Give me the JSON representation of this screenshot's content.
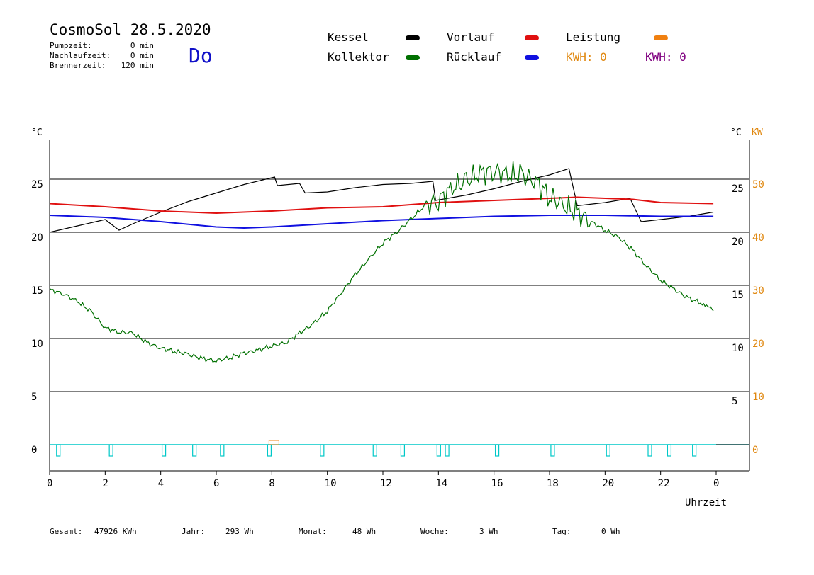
{
  "header": {
    "title": "CosmoSol 28.5.2020",
    "day": "Do",
    "info_rows": [
      {
        "label": "Pumpzeit:",
        "value": "0 min"
      },
      {
        "label": "Nachlaufzeit:",
        "value": "0 min"
      },
      {
        "label": "Brennerzeit:",
        "value": "120 min"
      }
    ]
  },
  "legend": {
    "kessel": {
      "label": "Kessel",
      "color": "#000000"
    },
    "kollektor": {
      "label": "Kollektor",
      "color": "#007000"
    },
    "vorlauf": {
      "label": "Vorlauf",
      "color": "#e01010"
    },
    "ruecklauf": {
      "label": "Rücklauf",
      "color": "#1010e0"
    },
    "leistung": {
      "label": "Leistung",
      "color": "#f08010"
    },
    "kwh_orange": "KWH: 0",
    "kwh_purple": "KWH: 0",
    "kwh_orange_color": "#e08810",
    "kwh_purple_color": "#800080"
  },
  "footer": {
    "gesamt_label": "Gesamt:",
    "gesamt_value": "47926 KWh",
    "jahr_label": "Jahr:",
    "jahr_value": "293 Wh",
    "monat_label": "Monat:",
    "monat_value": "48 Wh",
    "woche_label": "Woche:",
    "woche_value": "3 Wh",
    "tag_label": "Tag:",
    "tag_value": "0 Wh"
  },
  "chart_data": {
    "type": "line",
    "left_unit": "°C",
    "right_unit_temp": "°C",
    "right_unit_power": "KW",
    "xlabel": "Uhrzeit",
    "x_ticks": [
      "0",
      "2",
      "4",
      "6",
      "8",
      "10",
      "12",
      "14",
      "16",
      "18",
      "20",
      "22",
      "0"
    ],
    "xlim": [
      0,
      24
    ],
    "ylim": [
      -2,
      29
    ],
    "y_ticks_left": [
      "25",
      "20",
      "15",
      "10",
      "5",
      "0"
    ],
    "y_ticks_right_temp": [
      "25",
      "20",
      "15",
      "10",
      "5"
    ],
    "y_ticks_right_kw": [
      "50",
      "40",
      "30",
      "20",
      "10",
      "0"
    ],
    "grid": "horizontal",
    "series": [
      {
        "name": "Kessel",
        "color": "#000000",
        "points": [
          [
            0,
            20.0
          ],
          [
            0.5,
            20.3
          ],
          [
            1,
            20.6
          ],
          [
            1.5,
            20.9
          ],
          [
            2,
            21.2
          ],
          [
            2.5,
            20.2
          ],
          [
            3,
            20.8
          ],
          [
            4,
            21.9
          ],
          [
            5,
            22.9
          ],
          [
            6,
            23.7
          ],
          [
            7,
            24.5
          ],
          [
            8.1,
            25.2
          ],
          [
            8.2,
            24.4
          ],
          [
            9.0,
            24.6
          ],
          [
            9.2,
            23.7
          ],
          [
            10,
            23.8
          ],
          [
            11,
            24.2
          ],
          [
            12,
            24.5
          ],
          [
            13,
            24.6
          ],
          [
            13.8,
            24.8
          ],
          [
            13.9,
            23.0
          ],
          [
            15,
            23.5
          ],
          [
            16,
            24.1
          ],
          [
            17,
            24.8
          ],
          [
            18,
            25.4
          ],
          [
            18.7,
            26.0
          ],
          [
            19.0,
            22.5
          ],
          [
            20,
            22.8
          ],
          [
            20.9,
            23.2
          ],
          [
            21.3,
            21.0
          ],
          [
            22,
            21.2
          ],
          [
            23,
            21.5
          ],
          [
            23.9,
            21.9
          ]
        ]
      },
      {
        "name": "Vorlauf",
        "color": "#e01010",
        "points": [
          [
            0,
            22.7
          ],
          [
            2,
            22.4
          ],
          [
            4,
            22.0
          ],
          [
            6,
            21.8
          ],
          [
            8,
            22.0
          ],
          [
            10,
            22.3
          ],
          [
            12,
            22.4
          ],
          [
            14,
            22.8
          ],
          [
            16,
            23.0
          ],
          [
            18,
            23.2
          ],
          [
            19,
            23.3
          ],
          [
            21,
            23.1
          ],
          [
            22,
            22.8
          ],
          [
            23.9,
            22.7
          ]
        ]
      },
      {
        "name": "Rücklauf",
        "color": "#1010e0",
        "points": [
          [
            0,
            21.6
          ],
          [
            2,
            21.4
          ],
          [
            4,
            21.0
          ],
          [
            6,
            20.5
          ],
          [
            7,
            20.4
          ],
          [
            8,
            20.5
          ],
          [
            10,
            20.8
          ],
          [
            12,
            21.1
          ],
          [
            14,
            21.3
          ],
          [
            16,
            21.5
          ],
          [
            18,
            21.6
          ],
          [
            20,
            21.6
          ],
          [
            22,
            21.5
          ],
          [
            23.9,
            21.5
          ]
        ]
      },
      {
        "name": "Kollektor",
        "color": "#007000",
        "points": [
          [
            0,
            14.6
          ],
          [
            0.5,
            14.2
          ],
          [
            1,
            13.5
          ],
          [
            1.5,
            12.5
          ],
          [
            2,
            11.0
          ],
          [
            2.5,
            10.6
          ],
          [
            3,
            10.5
          ],
          [
            3.5,
            9.6
          ],
          [
            4,
            9.1
          ],
          [
            4.5,
            8.8
          ],
          [
            5,
            8.5
          ],
          [
            5.5,
            8.1
          ],
          [
            6,
            7.9
          ],
          [
            6.5,
            8.2
          ],
          [
            7,
            8.6
          ],
          [
            7.5,
            8.9
          ],
          [
            8,
            9.3
          ],
          [
            8.5,
            9.6
          ],
          [
            9,
            10.5
          ],
          [
            9.5,
            11.4
          ],
          [
            10,
            12.6
          ],
          [
            10.5,
            14.3
          ],
          [
            11,
            16.0
          ],
          [
            11.5,
            17.5
          ],
          [
            12,
            19.0
          ],
          [
            12.5,
            20.0
          ],
          [
            13,
            21.2
          ],
          [
            13.5,
            22.5
          ],
          [
            14,
            23.0
          ],
          [
            14.5,
            24.2
          ],
          [
            15,
            24.8
          ],
          [
            15.5,
            25.6
          ],
          [
            16,
            25.8
          ],
          [
            16.5,
            25.4
          ],
          [
            17,
            25.4
          ],
          [
            17.5,
            24.8
          ],
          [
            18,
            23.4
          ],
          [
            18.5,
            22.5
          ],
          [
            19,
            21.8
          ],
          [
            19.5,
            21.0
          ],
          [
            20,
            20.2
          ],
          [
            20.5,
            19.5
          ],
          [
            21,
            18.3
          ],
          [
            21.5,
            16.8
          ],
          [
            22,
            15.5
          ],
          [
            22.5,
            14.6
          ],
          [
            23,
            13.8
          ],
          [
            23.5,
            13.3
          ],
          [
            23.9,
            12.6
          ]
        ]
      }
    ],
    "pump_markers_hours": [
      0.3,
      2.2,
      4.1,
      5.2,
      6.2,
      7.9,
      9.8,
      11.7,
      12.7,
      14.0,
      14.3,
      16.1,
      18.1,
      20.1,
      21.6,
      22.3,
      23.2
    ]
  }
}
